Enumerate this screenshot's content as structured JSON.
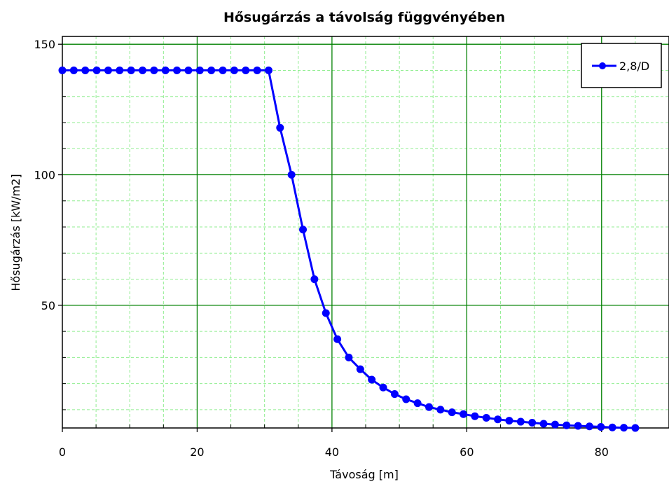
{
  "chart_data": {
    "type": "line",
    "title": "Hősugárzás a távolság függvényében",
    "xlabel": "Távoság [m]",
    "ylabel": "Hősugárzás [kW/m2]",
    "xlim": [
      0,
      90
    ],
    "ylim": [
      3,
      153
    ],
    "xticks": [
      0,
      20,
      40,
      60,
      80
    ],
    "yticks": [
      50,
      100,
      150
    ],
    "x_minor_step": 5,
    "y_minor_step": 10,
    "grid": true,
    "legend_position": "top-right",
    "series": [
      {
        "name": "2,8/D",
        "color": "#0000ff",
        "x": [
          0,
          1.7,
          3.4,
          5.1,
          6.8,
          8.5,
          10.2,
          11.9,
          13.6,
          15.3,
          17.0,
          18.7,
          20.4,
          22.1,
          23.8,
          25.5,
          27.2,
          28.9,
          30.6,
          32.3,
          34.0,
          35.7,
          37.4,
          39.1,
          40.8,
          42.5,
          44.2,
          45.9,
          47.6,
          49.3,
          51.0,
          52.7,
          54.4,
          56.1,
          57.8,
          59.5,
          61.2,
          62.9,
          64.6,
          66.3,
          68.0,
          69.7,
          71.4,
          73.1,
          74.8,
          76.5,
          78.2,
          79.9,
          81.6,
          83.3,
          85.0
        ],
        "y": [
          140,
          140,
          140,
          140,
          140,
          140,
          140,
          140,
          140,
          140,
          140,
          140,
          140,
          140,
          140,
          140,
          140,
          140,
          140,
          118,
          100,
          79,
          60,
          47,
          37,
          30,
          25.5,
          21.5,
          18.5,
          16,
          14,
          12.5,
          11,
          10,
          9,
          8.3,
          7.5,
          6.9,
          6.3,
          5.8,
          5.4,
          5.0,
          4.6,
          4.3,
          4.0,
          3.8,
          3.6,
          3.4,
          3.2,
          3.1,
          3.0
        ]
      }
    ]
  },
  "colors": {
    "major_grid": "#008000",
    "minor_grid": "#90ee90",
    "series": "#0000ff",
    "axis": "#000000"
  }
}
